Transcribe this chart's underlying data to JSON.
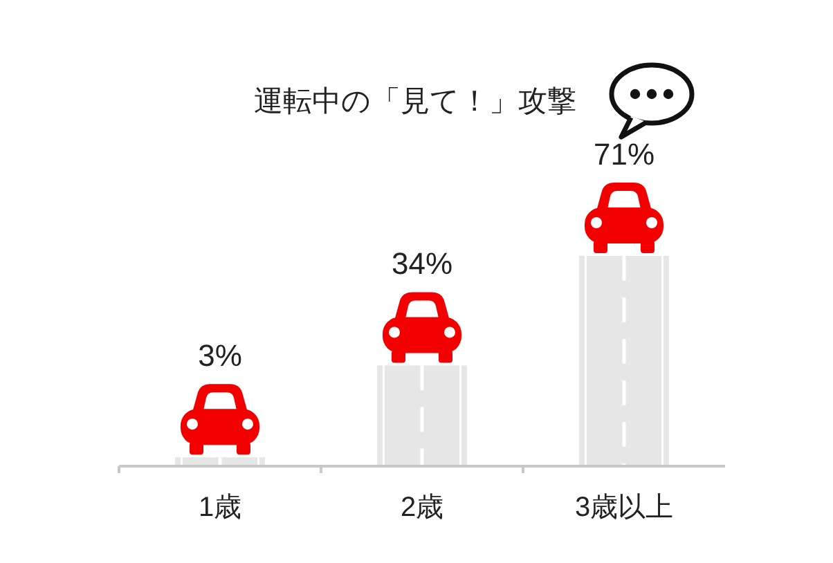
{
  "chart_data": {
    "type": "bar",
    "title": "運転中の「見て！」攻撃",
    "categories": [
      "1歳",
      "2歳",
      "3歳以上"
    ],
    "values": [
      3,
      34,
      71
    ],
    "color": "#e6e6e6",
    "value_labels": [
      "3%",
      "34%",
      "71%"
    ]
  }
}
